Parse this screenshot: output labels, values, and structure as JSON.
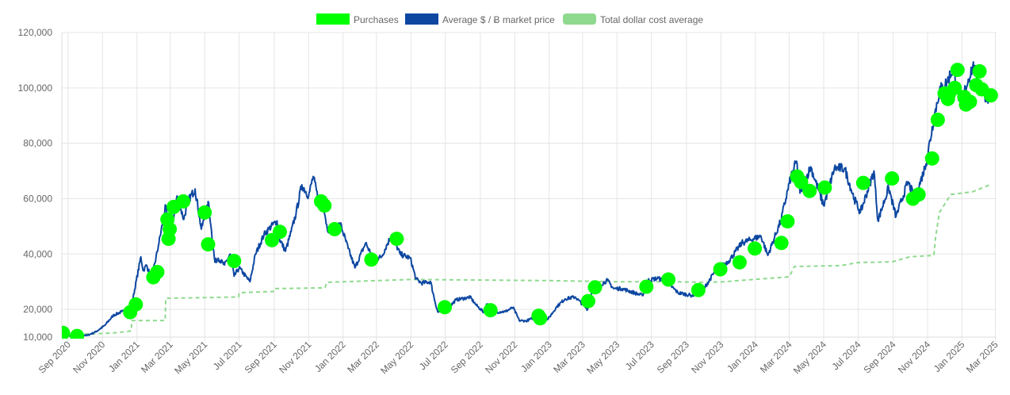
{
  "colors": {
    "purchases": "#00ff00",
    "market_price": "#0d47a1",
    "dca": "#8fd98f",
    "grid": "#e5e5e5",
    "axis_text": "#666666"
  },
  "chart_data": {
    "type": "line",
    "title": "",
    "xlabel": "",
    "ylabel": "",
    "ylim": [
      10000,
      120000
    ],
    "y_ticks": [
      "120,000",
      "100,000",
      "80,000",
      "60,000",
      "40,000",
      "20,000",
      "10,000"
    ],
    "y_tick_values": [
      120000,
      100000,
      80000,
      60000,
      40000,
      20000,
      10000
    ],
    "x_range": [
      "2020-08-21",
      "2025-03-03"
    ],
    "x_ticks": [
      {
        "date": "2020-09-01",
        "label": "Sep 2020"
      },
      {
        "date": "2020-11-01",
        "label": "Nov 2020"
      },
      {
        "date": "2021-01-01",
        "label": "Jan 2021"
      },
      {
        "date": "2021-03-01",
        "label": "Mar 2021"
      },
      {
        "date": "2021-05-01",
        "label": "May 2021"
      },
      {
        "date": "2021-07-01",
        "label": "Jul 2021"
      },
      {
        "date": "2021-09-01",
        "label": "Sep 2021"
      },
      {
        "date": "2021-11-01",
        "label": "Nov 2021"
      },
      {
        "date": "2022-01-01",
        "label": "Jan 2022"
      },
      {
        "date": "2022-03-01",
        "label": "Mar 2022"
      },
      {
        "date": "2022-05-01",
        "label": "May 2022"
      },
      {
        "date": "2022-07-01",
        "label": "Jul 2022"
      },
      {
        "date": "2022-09-01",
        "label": "Sep 2022"
      },
      {
        "date": "2022-11-01",
        "label": "Nov 2022"
      },
      {
        "date": "2023-01-01",
        "label": "Jan 2023"
      },
      {
        "date": "2023-03-01",
        "label": "Mar 2023"
      },
      {
        "date": "2023-05-01",
        "label": "May 2023"
      },
      {
        "date": "2023-07-01",
        "label": "Jul 2023"
      },
      {
        "date": "2023-09-01",
        "label": "Sep 2023"
      },
      {
        "date": "2023-11-01",
        "label": "Nov 2023"
      },
      {
        "date": "2024-01-01",
        "label": "Jan 2024"
      },
      {
        "date": "2024-03-01",
        "label": "Mar 2024"
      },
      {
        "date": "2024-05-01",
        "label": "May 2024"
      },
      {
        "date": "2024-07-01",
        "label": "Jul 2024"
      },
      {
        "date": "2024-09-01",
        "label": "Sep 2024"
      },
      {
        "date": "2024-11-01",
        "label": "Nov 2024"
      },
      {
        "date": "2025-01-01",
        "label": "Jan 2025"
      },
      {
        "date": "2025-03-01",
        "label": "Mar 2025"
      }
    ],
    "grid": true,
    "legend_position": "top",
    "legend": [
      {
        "key": "purchases",
        "label": "Purchases"
      },
      {
        "key": "market_price",
        "label": "Average $ / Ƀ market price"
      },
      {
        "key": "dca",
        "label": "Total dollar cost average"
      }
    ],
    "series": [
      {
        "name": "Average $ / Ƀ market price",
        "type": "line",
        "points": [
          [
            "2020-08-23",
            11700
          ],
          [
            "2020-09-05",
            10300
          ],
          [
            "2020-09-20",
            10900
          ],
          [
            "2020-10-05",
            10600
          ],
          [
            "2020-10-20",
            11900
          ],
          [
            "2020-11-05",
            14200
          ],
          [
            "2020-11-20",
            17800
          ],
          [
            "2020-12-05",
            19200
          ],
          [
            "2020-12-15",
            19400
          ],
          [
            "2020-12-25",
            24000
          ],
          [
            "2021-01-08",
            39000
          ],
          [
            "2021-01-12",
            34000
          ],
          [
            "2021-01-18",
            36000
          ],
          [
            "2021-01-27",
            31000
          ],
          [
            "2021-02-08",
            43000
          ],
          [
            "2021-02-21",
            57500
          ],
          [
            "2021-02-28",
            45000
          ],
          [
            "2021-03-13",
            61000
          ],
          [
            "2021-03-25",
            52500
          ],
          [
            "2021-04-01",
            59000
          ],
          [
            "2021-04-14",
            63500
          ],
          [
            "2021-04-25",
            49000
          ],
          [
            "2021-05-08",
            58500
          ],
          [
            "2021-05-12",
            50000
          ],
          [
            "2021-05-19",
            37000
          ],
          [
            "2021-05-25",
            38500
          ],
          [
            "2021-06-05",
            36000
          ],
          [
            "2021-06-15",
            40000
          ],
          [
            "2021-06-22",
            32000
          ],
          [
            "2021-07-01",
            35000
          ],
          [
            "2021-07-20",
            30000
          ],
          [
            "2021-07-30",
            40000
          ],
          [
            "2021-08-14",
            47000
          ],
          [
            "2021-08-22",
            49000
          ],
          [
            "2021-09-06",
            52000
          ],
          [
            "2021-09-08",
            46500
          ],
          [
            "2021-09-21",
            41000
          ],
          [
            "2021-10-01",
            48000
          ],
          [
            "2021-10-10",
            55000
          ],
          [
            "2021-10-20",
            65000
          ],
          [
            "2021-11-01",
            61000
          ],
          [
            "2021-11-09",
            68000
          ],
          [
            "2021-11-20",
            58000
          ],
          [
            "2021-11-28",
            57000
          ],
          [
            "2021-12-04",
            49000
          ],
          [
            "2021-12-15",
            48500
          ],
          [
            "2021-12-27",
            51000
          ],
          [
            "2022-01-10",
            42000
          ],
          [
            "2022-01-22",
            35000
          ],
          [
            "2022-02-10",
            44000
          ],
          [
            "2022-02-24",
            38000
          ],
          [
            "2022-03-10",
            39000
          ],
          [
            "2022-03-28",
            47000
          ],
          [
            "2022-04-12",
            40000
          ],
          [
            "2022-04-30",
            38500
          ],
          [
            "2022-05-10",
            31000
          ],
          [
            "2022-05-20",
            29500
          ],
          [
            "2022-06-05",
            30000
          ],
          [
            "2022-06-13",
            22500
          ],
          [
            "2022-06-18",
            19000
          ],
          [
            "2022-07-05",
            20200
          ],
          [
            "2022-07-20",
            23500
          ],
          [
            "2022-08-14",
            24400
          ],
          [
            "2022-08-25",
            21500
          ],
          [
            "2022-09-07",
            19000
          ],
          [
            "2022-09-13",
            22000
          ],
          [
            "2022-09-25",
            19000
          ],
          [
            "2022-10-15",
            19200
          ],
          [
            "2022-10-29",
            20700
          ],
          [
            "2022-11-09",
            16000
          ],
          [
            "2022-11-21",
            15800
          ],
          [
            "2022-12-14",
            17800
          ],
          [
            "2022-12-30",
            16500
          ],
          [
            "2023-01-14",
            20900
          ],
          [
            "2023-01-29",
            23800
          ],
          [
            "2023-02-16",
            24500
          ],
          [
            "2023-03-10",
            20000
          ],
          [
            "2023-03-18",
            27000
          ],
          [
            "2023-04-14",
            30500
          ],
          [
            "2023-04-25",
            27500
          ],
          [
            "2023-05-10",
            27500
          ],
          [
            "2023-06-15",
            25000
          ],
          [
            "2023-06-25",
            30500
          ],
          [
            "2023-07-13",
            31300
          ],
          [
            "2023-08-01",
            29200
          ],
          [
            "2023-08-17",
            26000
          ],
          [
            "2023-09-11",
            25000
          ],
          [
            "2023-10-02",
            27500
          ],
          [
            "2023-10-24",
            34500
          ],
          [
            "2023-11-15",
            37500
          ],
          [
            "2023-12-08",
            44000
          ],
          [
            "2024-01-11",
            46500
          ],
          [
            "2024-01-23",
            39500
          ],
          [
            "2024-02-15",
            52000
          ],
          [
            "2024-03-04",
            68000
          ],
          [
            "2024-03-14",
            73500
          ],
          [
            "2024-03-20",
            62000
          ],
          [
            "2024-04-08",
            71500
          ],
          [
            "2024-05-01",
            57500
          ],
          [
            "2024-05-20",
            71000
          ],
          [
            "2024-06-07",
            71000
          ],
          [
            "2024-06-24",
            60000
          ],
          [
            "2024-07-05",
            55000
          ],
          [
            "2024-07-29",
            70000
          ],
          [
            "2024-08-05",
            52000
          ],
          [
            "2024-08-24",
            64000
          ],
          [
            "2024-09-06",
            53500
          ],
          [
            "2024-09-27",
            66000
          ],
          [
            "2024-10-10",
            60000
          ],
          [
            "2024-10-29",
            72500
          ],
          [
            "2024-11-13",
            90000
          ],
          [
            "2024-11-22",
            99000
          ],
          [
            "2024-12-05",
            102000
          ],
          [
            "2024-12-17",
            107500
          ],
          [
            "2024-12-30",
            92500
          ],
          [
            "2025-01-07",
            100000
          ],
          [
            "2025-01-20",
            108000
          ],
          [
            "2025-02-01",
            101000
          ],
          [
            "2025-02-10",
            97500
          ],
          [
            "2025-02-19",
            96500
          ]
        ]
      },
      {
        "name": "Total dollar cost average",
        "type": "line",
        "points": [
          [
            "2020-08-23",
            11500
          ],
          [
            "2020-09-20",
            11100
          ],
          [
            "2020-10-20",
            11200
          ],
          [
            "2020-11-20",
            11500
          ],
          [
            "2020-12-15",
            12000
          ],
          [
            "2020-12-22",
            12300
          ],
          [
            "2020-12-23",
            16000
          ],
          [
            "2021-02-20",
            16000
          ],
          [
            "2021-02-21",
            24000
          ],
          [
            "2021-06-30",
            24500
          ],
          [
            "2021-07-01",
            26000
          ],
          [
            "2021-08-31",
            26500
          ],
          [
            "2021-09-01",
            27500
          ],
          [
            "2021-11-30",
            27800
          ],
          [
            "2021-12-03",
            29800
          ],
          [
            "2022-01-31",
            30200
          ],
          [
            "2022-04-30",
            30800
          ],
          [
            "2022-07-01",
            30700
          ],
          [
            "2022-12-31",
            30400
          ],
          [
            "2023-04-30",
            30000
          ],
          [
            "2023-07-31",
            30000
          ],
          [
            "2023-09-30",
            29800
          ],
          [
            "2023-10-31",
            29900
          ],
          [
            "2024-01-31",
            31300
          ],
          [
            "2024-03-01",
            31800
          ],
          [
            "2024-03-10",
            35500
          ],
          [
            "2024-05-31",
            35800
          ],
          [
            "2024-06-30",
            36900
          ],
          [
            "2024-08-31",
            37200
          ],
          [
            "2024-09-30",
            39000
          ],
          [
            "2024-11-12",
            39500
          ],
          [
            "2024-11-15",
            46000
          ],
          [
            "2024-11-22",
            55000
          ],
          [
            "2024-12-12",
            61500
          ],
          [
            "2025-01-20",
            62500
          ],
          [
            "2025-02-19",
            65000
          ]
        ]
      },
      {
        "name": "Purchases",
        "type": "scatter",
        "points": [
          [
            "2020-08-23",
            11500
          ],
          [
            "2020-09-17",
            10400
          ],
          [
            "2020-12-20",
            19000
          ],
          [
            "2020-12-30",
            21800
          ],
          [
            "2021-01-30",
            31600
          ],
          [
            "2021-02-06",
            33500
          ],
          [
            "2021-02-24",
            52500
          ],
          [
            "2021-02-26",
            45500
          ],
          [
            "2021-02-28",
            49000
          ],
          [
            "2021-03-07",
            57000
          ],
          [
            "2021-03-24",
            59000
          ],
          [
            "2021-05-01",
            55000
          ],
          [
            "2021-05-07",
            43500
          ],
          [
            "2021-06-22",
            37500
          ],
          [
            "2021-08-28",
            45000
          ],
          [
            "2021-09-11",
            48000
          ],
          [
            "2021-11-23",
            59000
          ],
          [
            "2021-11-29",
            57500
          ],
          [
            "2021-12-17",
            49000
          ],
          [
            "2022-02-20",
            38000
          ],
          [
            "2022-04-06",
            45500
          ],
          [
            "2022-06-30",
            20800
          ],
          [
            "2022-09-19",
            19700
          ],
          [
            "2022-12-13",
            17700
          ],
          [
            "2022-12-16",
            16800
          ],
          [
            "2023-03-11",
            23000
          ],
          [
            "2023-03-23",
            28000
          ],
          [
            "2023-06-22",
            28200
          ],
          [
            "2023-07-31",
            30800
          ],
          [
            "2023-09-22",
            27000
          ],
          [
            "2023-10-31",
            34500
          ],
          [
            "2023-12-04",
            37000
          ],
          [
            "2023-12-31",
            42000
          ],
          [
            "2024-02-16",
            44000
          ],
          [
            "2024-02-27",
            51800
          ],
          [
            "2024-03-15",
            68000
          ],
          [
            "2024-03-22",
            66000
          ],
          [
            "2024-04-06",
            62800
          ],
          [
            "2024-05-03",
            64000
          ],
          [
            "2024-07-10",
            65700
          ],
          [
            "2024-08-30",
            67300
          ],
          [
            "2024-10-06",
            60000
          ],
          [
            "2024-10-16",
            61500
          ],
          [
            "2024-11-09",
            74500
          ],
          [
            "2024-11-19",
            88500
          ],
          [
            "2024-12-01",
            98000
          ],
          [
            "2024-12-07",
            96000
          ],
          [
            "2024-12-09",
            98000
          ],
          [
            "2024-12-19",
            100000
          ],
          [
            "2024-12-24",
            106500
          ],
          [
            "2025-01-05",
            96700
          ],
          [
            "2025-01-08",
            94000
          ],
          [
            "2025-01-15",
            95000
          ],
          [
            "2025-01-26",
            101000
          ],
          [
            "2025-02-01",
            106000
          ],
          [
            "2025-02-05",
            99500
          ],
          [
            "2025-02-21",
            97300
          ]
        ]
      }
    ]
  }
}
